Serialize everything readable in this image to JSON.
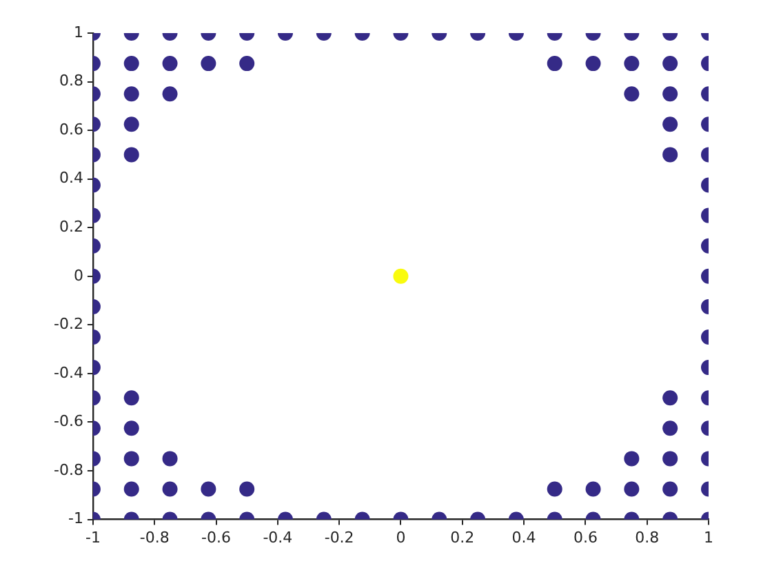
{
  "chart_data": {
    "type": "scatter",
    "marker": "circle",
    "grid": false,
    "legend": false,
    "xlim": [
      -1,
      1
    ],
    "ylim": [
      -1,
      1
    ],
    "xticks": [
      -1,
      -0.8,
      -0.6,
      -0.4,
      -0.2,
      0,
      0.2,
      0.4,
      0.6,
      0.8,
      1
    ],
    "yticks": [
      -1,
      -0.8,
      -0.6,
      -0.4,
      -0.2,
      0,
      0.2,
      0.4,
      0.6,
      0.8,
      1
    ],
    "series": [
      {
        "color": "#352a87",
        "x": [
          -1,
          -0.875,
          -0.75,
          -0.625,
          -0.5,
          -0.375,
          -0.25,
          -0.125,
          0,
          0.125,
          0.25,
          0.375,
          0.5,
          0.625,
          0.75,
          0.875,
          1,
          -1,
          -0.875,
          -0.75,
          -0.625,
          -0.5,
          0.5,
          0.625,
          0.75,
          0.875,
          1,
          -1,
          -0.875,
          -0.75,
          0.75,
          0.875,
          1,
          -1,
          -0.875,
          0.875,
          1,
          -1,
          -0.875,
          0.875,
          1,
          -1,
          1,
          -1,
          1,
          -1,
          1,
          -1,
          1,
          -1,
          1,
          -1,
          1,
          -1,
          1,
          -1,
          -0.875,
          0.875,
          1,
          -1,
          -0.875,
          0.875,
          1,
          -1,
          -0.875,
          -0.75,
          0.75,
          0.875,
          1,
          -1,
          -0.875,
          -0.75,
          -0.625,
          -0.5,
          0.5,
          0.625,
          0.75,
          0.875,
          1,
          -1,
          -0.875,
          -0.75,
          -0.625,
          -0.5,
          -0.375,
          -0.25,
          -0.125,
          0,
          0.125,
          0.25,
          0.375,
          0.5,
          0.625,
          0.75,
          0.875,
          1
        ],
        "values": [
          1,
          1,
          1,
          1,
          1,
          1,
          1,
          1,
          1,
          1,
          1,
          1,
          1,
          1,
          1,
          1,
          1,
          0.875,
          0.875,
          0.875,
          0.875,
          0.875,
          0.875,
          0.875,
          0.875,
          0.875,
          0.875,
          0.75,
          0.75,
          0.75,
          0.75,
          0.75,
          0.75,
          0.625,
          0.625,
          0.625,
          0.625,
          0.5,
          0.5,
          0.5,
          0.5,
          0.375,
          0.375,
          0.25,
          0.25,
          0.125,
          0.125,
          0,
          0,
          -0.125,
          -0.125,
          -0.25,
          -0.25,
          -0.375,
          -0.375,
          -0.5,
          -0.5,
          -0.5,
          -0.5,
          -0.625,
          -0.625,
          -0.625,
          -0.625,
          -0.75,
          -0.75,
          -0.75,
          -0.75,
          -0.75,
          -0.75,
          -0.875,
          -0.875,
          -0.875,
          -0.875,
          -0.875,
          -0.875,
          -0.875,
          -0.875,
          -0.875,
          -0.875,
          -1,
          -1,
          -1,
          -1,
          -1,
          -1,
          -1,
          -1,
          -1,
          -1,
          -1,
          -1,
          -1,
          -1,
          -1,
          -1,
          -1
        ]
      },
      {
        "color": "#f9fb0e",
        "x": [
          0
        ],
        "values": [
          0
        ]
      }
    ]
  }
}
